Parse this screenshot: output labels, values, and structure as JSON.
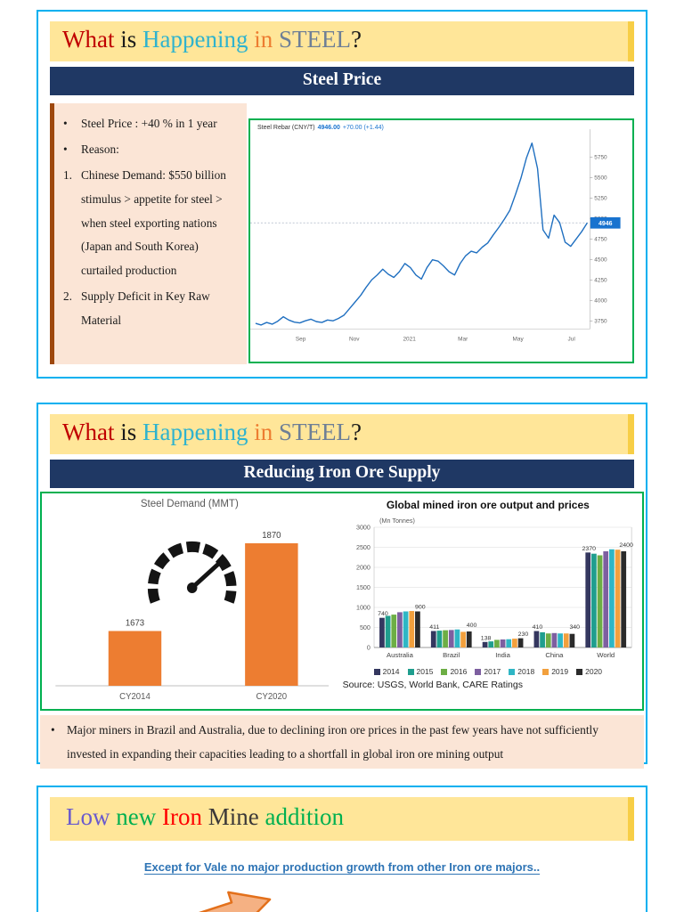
{
  "colors": {
    "slide_border": "#00B0F0",
    "banner_bg": "#FFE699",
    "banner_edge": "#F7CE46",
    "header_bg": "#1F3864",
    "note_bg": "#FBE5D6",
    "note_edge": "#9E480E",
    "chart_border": "#00B050",
    "accent_orange": "#ED7D31",
    "line_blue": "#1F6FC0",
    "price_tag_bg": "#1873CF",
    "subtitle_blue": "#2E74B5"
  },
  "s1": {
    "title": [
      {
        "text": "What ",
        "color": "#C00000"
      },
      {
        "text": "is ",
        "color": "#1A1A1A"
      },
      {
        "text": "Happening ",
        "color": "#2FB3CE"
      },
      {
        "text": "in ",
        "color": "#ED7D31"
      },
      {
        "text": "STEEL",
        "color": "#6E7F96"
      },
      {
        "text": "?",
        "color": "#1A1A1A"
      }
    ],
    "header": "Steel Price",
    "bullets": [
      {
        "marker": "•",
        "text": "Steel Price : +40 % in 1 year"
      },
      {
        "marker": "•",
        "text": "Reason:"
      },
      {
        "marker": "1.",
        "text": "Chinese Demand: $550 billion stimulus  > appetite for steel > when steel exporting nations (Japan and South Korea) curtailed production"
      },
      {
        "marker": "2.",
        "text": "Supply Deficit in Key Raw Material"
      }
    ]
  },
  "s2": {
    "title": [
      {
        "text": "What ",
        "color": "#C00000"
      },
      {
        "text": "is ",
        "color": "#1A1A1A"
      },
      {
        "text": "Happening ",
        "color": "#2FB3CE"
      },
      {
        "text": "in ",
        "color": "#ED7D31"
      },
      {
        "text": "STEEL",
        "color": "#6E7F96"
      },
      {
        "text": "?",
        "color": "#1A1A1A"
      }
    ],
    "header": "Reducing Iron Ore  Supply",
    "note": "Major miners in Brazil and Australia, due to declining iron ore prices in the past few years have not sufficiently invested in expanding their capacities leading to a shortfall in global iron ore mining output"
  },
  "s3": {
    "title": [
      {
        "text": "Low ",
        "color": "#6A5ACD"
      },
      {
        "text": "new ",
        "color": "#00B050"
      },
      {
        "text": "Iron ",
        "color": "#FF0000"
      },
      {
        "text": "Mine ",
        "color": "#3B3838"
      },
      {
        "text": "addition",
        "color": "#00B050"
      }
    ],
    "subtitle": "Except for Vale no major production growth from other Iron ore majors.."
  },
  "chart_data": [
    {
      "id": "steel_rebar",
      "type": "line",
      "title": "Steel Rebar (CNY/T)",
      "price": "4946.00",
      "change": "+70.00 (+1.44)",
      "last_price": 4946,
      "ylim": [
        3650,
        6000
      ],
      "y_ticks": [
        3750,
        4000,
        4250,
        4500,
        4750,
        5000,
        5250,
        5500,
        5750
      ],
      "x_labels": [
        "Sep",
        "Nov",
        "2021",
        "Mar",
        "May",
        "Jul"
      ],
      "values": [
        3720,
        3700,
        3730,
        3710,
        3745,
        3800,
        3760,
        3735,
        3725,
        3750,
        3770,
        3740,
        3730,
        3760,
        3750,
        3780,
        3820,
        3900,
        3980,
        4060,
        4160,
        4250,
        4310,
        4380,
        4320,
        4280,
        4350,
        4450,
        4400,
        4310,
        4260,
        4400,
        4495,
        4480,
        4420,
        4350,
        4310,
        4450,
        4545,
        4600,
        4580,
        4650,
        4700,
        4800,
        4890,
        4990,
        5100,
        5290,
        5490,
        5740,
        5920,
        5610,
        4860,
        4760,
        5040,
        4950,
        4710,
        4660,
        4750,
        4840,
        4946
      ]
    },
    {
      "id": "steel_demand",
      "type": "bar",
      "title": "Steel Demand (MMT)",
      "categories": [
        "CY2014",
        "CY2020"
      ],
      "values": [
        1673,
        1870
      ],
      "bar_color": "#ED7D31"
    },
    {
      "id": "iron_ore_output",
      "type": "grouped-bar",
      "title": "Global mined iron ore output and prices",
      "unit_label": "(Mn Tonnes)",
      "source": "Source: USGS, World Bank, CARE Ratings",
      "categories": [
        "Australia",
        "Brazil",
        "India",
        "China",
        "World"
      ],
      "ylim": [
        0,
        3000
      ],
      "y_ticks": [
        0,
        500,
        1000,
        1500,
        2000,
        2500,
        3000
      ],
      "series": [
        {
          "name": "2014",
          "color": "#34375F",
          "values": [
            740,
            411,
            138,
            410,
            2370
          ]
        },
        {
          "name": "2015",
          "color": "#1F9E8E",
          "values": [
            790,
            420,
            152,
            380,
            2340
          ]
        },
        {
          "name": "2016",
          "color": "#6DAE45",
          "values": [
            820,
            430,
            190,
            350,
            2300
          ]
        },
        {
          "name": "2017",
          "color": "#7D5FA0",
          "values": [
            880,
            436,
            200,
            360,
            2400
          ]
        },
        {
          "name": "2018",
          "color": "#2FB6C5",
          "values": [
            900,
            450,
            206,
            350,
            2450
          ]
        },
        {
          "name": "2019",
          "color": "#F2A03D",
          "values": [
            910,
            390,
            220,
            350,
            2440
          ]
        },
        {
          "name": "2020",
          "color": "#2B2B2B",
          "values": [
            900,
            400,
            230,
            340,
            2400
          ]
        }
      ],
      "data_labels": {
        "Australia": [
          740,
          900
        ],
        "Brazil": [
          411,
          400
        ],
        "India": [
          138,
          230
        ],
        "China": [
          410,
          340
        ],
        "World": [
          2370,
          2400
        ]
      }
    }
  ]
}
